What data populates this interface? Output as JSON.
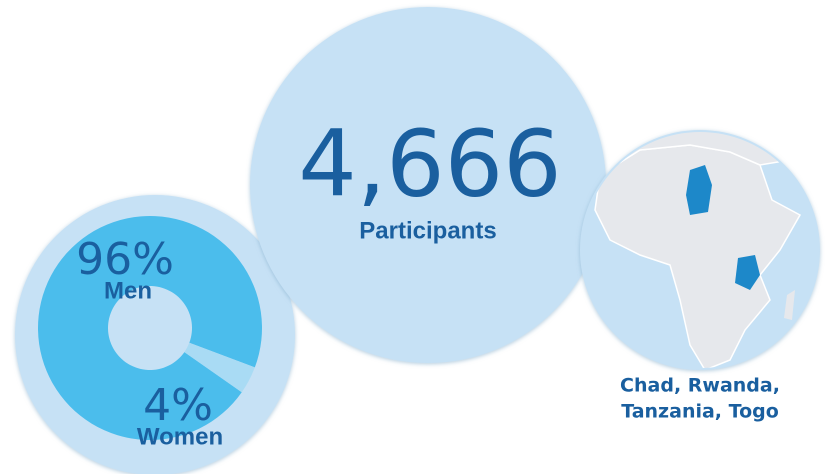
{
  "chart_data": {
    "type": "donut",
    "categories": [
      "Men",
      "Women"
    ],
    "values": [
      96,
      4
    ],
    "value_labels": [
      "96%",
      "4%"
    ],
    "colors": [
      "#4bbdec",
      "#a9dbf4"
    ]
  },
  "stats": {
    "participants": {
      "value": "4,666",
      "label": "Participants"
    }
  },
  "map": {
    "caption": [
      "Chad, Rwanda,",
      "Tanzania, Togo"
    ]
  }
}
